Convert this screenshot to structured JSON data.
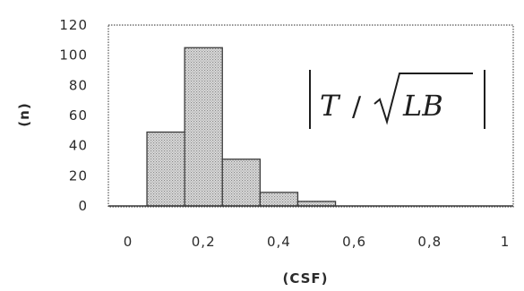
{
  "chart_data": {
    "type": "bar",
    "title": "",
    "xlabel": "(CSF)",
    "ylabel": "(n)",
    "xlim": [
      0,
      1
    ],
    "ylim": [
      0,
      120
    ],
    "bin_width": 0.1,
    "x_ticks": [
      {
        "value": 0,
        "label": "0"
      },
      {
        "value": 0.2,
        "label": "0,2"
      },
      {
        "value": 0.4,
        "label": "0,4"
      },
      {
        "value": 0.6,
        "label": "0,6"
      },
      {
        "value": 0.8,
        "label": "0,8"
      },
      {
        "value": 1,
        "label": "1"
      }
    ],
    "y_ticks": [
      {
        "value": 0,
        "label": "0"
      },
      {
        "value": 20,
        "label": "20"
      },
      {
        "value": 40,
        "label": "40"
      },
      {
        "value": 60,
        "label": "60"
      },
      {
        "value": 80,
        "label": "80"
      },
      {
        "value": 100,
        "label": "100"
      },
      {
        "value": 120,
        "label": "120"
      }
    ],
    "bins": [
      {
        "x": 0.1,
        "value": 49
      },
      {
        "x": 0.2,
        "value": 105
      },
      {
        "x": 0.3,
        "value": 31
      },
      {
        "x": 0.4,
        "value": 9
      },
      {
        "x": 0.5,
        "value": 3
      }
    ],
    "annotation": {
      "numerator": "T",
      "separator": "/",
      "radicand": "LB"
    },
    "grid": false,
    "legend": "none",
    "colors": {
      "bar_fill": "#cfcfcf",
      "bar_stroke": "#3a3a3a",
      "axis": "#3a3a3a"
    }
  }
}
